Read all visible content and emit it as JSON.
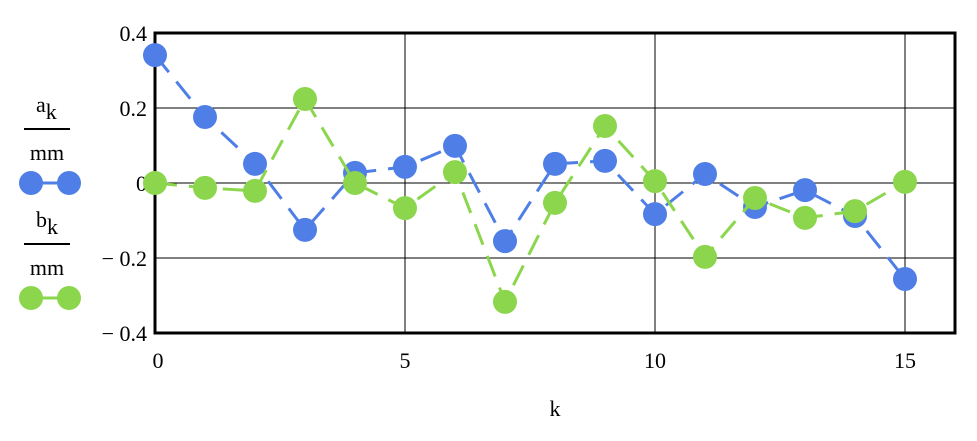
{
  "chart_data": {
    "type": "line",
    "x_label": "k",
    "x": [
      0,
      1,
      2,
      3,
      4,
      5,
      6,
      7,
      8,
      9,
      10,
      11,
      12,
      13,
      14,
      15
    ],
    "series": [
      {
        "name": "a",
        "name_subscript": "k",
        "unit": "mm",
        "color": "#4f7fe6",
        "values": [
          0.341,
          0.176,
          0.051,
          -0.125,
          0.027,
          0.043,
          0.099,
          -0.155,
          0.051,
          0.059,
          -0.083,
          0.024,
          -0.064,
          -0.019,
          -0.088,
          -0.256
        ]
      },
      {
        "name": "b",
        "name_subscript": "k",
        "unit": "mm",
        "color": "#8bd64c",
        "values": [
          0,
          -0.013,
          -0.021,
          0.224,
          0,
          -0.067,
          0.029,
          -0.317,
          -0.053,
          0.152,
          0.005,
          -0.197,
          -0.04,
          -0.093,
          -0.075,
          0.003
        ]
      }
    ],
    "xlim": [
      0,
      16
    ],
    "xticks": [
      0,
      5,
      10,
      15
    ],
    "ylim": [
      -0.4,
      0.4
    ],
    "yticks": [
      0.4,
      0.2,
      0,
      {
        "value": -0.2,
        "label": "− 0.2"
      },
      {
        "value": -0.4,
        "label": "− 0.4"
      }
    ],
    "grid": true
  }
}
